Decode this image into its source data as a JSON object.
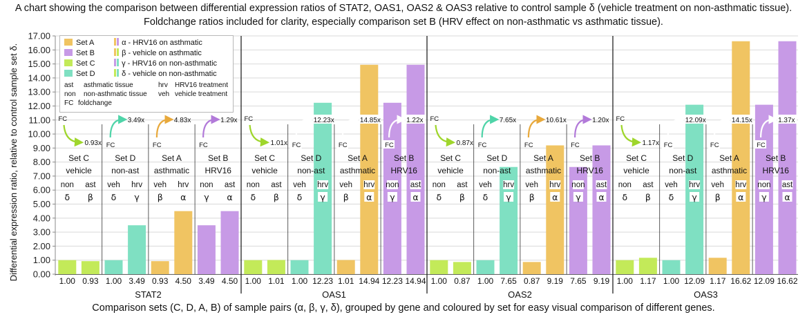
{
  "title_line1": "A chart showing the comparison between differential expression ratios of STAT2, OAS1, OAS2 & OAS3 relative to control sample δ (vehicle treatment on non-asthmatic tissue).",
  "title_line2": "Foldchange ratios included for clarity, especially comparison set B (HRV effect on non-asthmatic vs asthmatic tissue).",
  "xlabel": "Comparison sets (C, D, A, B) of sample pairs (α, β, γ, δ), grouped by gene and coloured by set for easy visual comparison of different genes.",
  "ylabel": "Differential expression ratio, relative to control sample set δ.",
  "colors": {
    "A": "#f0c462",
    "B": "#c79ae6",
    "C": "#c3ea59",
    "D": "#7fe0c2"
  },
  "legend": {
    "sets": [
      "Set A",
      "Set B",
      "Set C",
      "Set D"
    ],
    "samples": [
      {
        "color": "A",
        "text": "α - HRV16 on asthmatic"
      },
      {
        "color": "C",
        "text": "β - vehicle on asthmatic"
      },
      {
        "color": "B",
        "text": "γ - HRV16 on non-asthmatic"
      },
      {
        "color": "D",
        "text": "δ - vehicle on non-asthmatic"
      }
    ],
    "abbrev": [
      {
        "k": "ast",
        "v": "asthmatic tissue"
      },
      {
        "k": "hrv",
        "v": "HRV16 treatment"
      },
      {
        "k": "non",
        "v": "non-asthmatic tissue"
      },
      {
        "k": "veh",
        "v": "vehicle treatment"
      },
      {
        "k": "FC",
        "v": "foldchange"
      }
    ]
  },
  "fc_label": "FC",
  "chart_data": {
    "type": "bar",
    "ylim": [
      0,
      17
    ],
    "ytick_step": 1,
    "ytick_labels": [
      "0.00",
      "1.00",
      "2.00",
      "3.00",
      "4.00",
      "5.00",
      "6.00",
      "7.00",
      "8.00",
      "9.00",
      "10.00",
      "11.00",
      "12.00",
      "13.00",
      "14.00",
      "15.00",
      "16.00",
      "17.00"
    ],
    "grid": true,
    "genes": [
      {
        "name": "STAT2",
        "values": [
          1.0,
          0.93,
          1.0,
          3.49,
          0.93,
          4.5,
          3.49,
          4.5
        ],
        "value_labels": [
          "1.00",
          "0.93",
          "1.00",
          "3.49",
          "0.93",
          "4.50",
          "3.49",
          "4.50"
        ],
        "fc": [
          "0.93x",
          "3.49x",
          "4.83x",
          "1.29x"
        ]
      },
      {
        "name": "OAS1",
        "values": [
          1.0,
          1.01,
          1.0,
          12.23,
          1.01,
          14.94,
          12.23,
          14.94
        ],
        "value_labels": [
          "1.00",
          "1.01",
          "1.00",
          "12.23",
          "1.01",
          "14.94",
          "12.23",
          "14.94"
        ],
        "fc": [
          "1.01x",
          "12.23x",
          "14.85x",
          "1.22x"
        ]
      },
      {
        "name": "OAS2",
        "values": [
          1.0,
          0.87,
          1.0,
          7.65,
          0.87,
          9.19,
          7.65,
          9.19
        ],
        "value_labels": [
          "1.00",
          "0.87",
          "1.00",
          "7.65",
          "0.87",
          "9.19",
          "7.65",
          "9.19"
        ],
        "fc": [
          "0.87x",
          "7.65x",
          "10.61x",
          "1.20x"
        ]
      },
      {
        "name": "OAS3",
        "values": [
          1.0,
          1.17,
          1.0,
          12.09,
          1.17,
          16.62,
          12.09,
          16.62
        ],
        "value_labels": [
          "1.00",
          "1.17",
          "1.00",
          "12.09",
          "1.17",
          "16.62",
          "12.09",
          "16.62"
        ],
        "fc": [
          "1.17x",
          "12.09x",
          "14.15x",
          "1.37x"
        ]
      }
    ],
    "sets": [
      {
        "set": "C",
        "name": "Set C",
        "line2": "vehicle",
        "pairs": [
          [
            "non",
            "δ"
          ],
          [
            "ast",
            "β"
          ]
        ],
        "colors": [
          "C",
          "C"
        ]
      },
      {
        "set": "D",
        "name": "Set D",
        "line2": "non-ast",
        "pairs": [
          [
            "veh",
            "δ"
          ],
          [
            "hrv",
            "γ"
          ]
        ],
        "colors": [
          "D",
          "D"
        ]
      },
      {
        "set": "A",
        "name": "Set A",
        "line2": "asthmatic",
        "pairs": [
          [
            "veh",
            "β"
          ],
          [
            "hrv",
            "α"
          ]
        ],
        "colors": [
          "A",
          "A"
        ]
      },
      {
        "set": "B",
        "name": "Set B",
        "line2": "HRV16",
        "pairs": [
          [
            "non",
            "γ"
          ],
          [
            "ast",
            "α"
          ]
        ],
        "colors": [
          "B",
          "B"
        ]
      }
    ],
    "bar_colors": [
      "C",
      "C",
      "D",
      "D",
      "A",
      "A",
      "B",
      "B"
    ]
  }
}
